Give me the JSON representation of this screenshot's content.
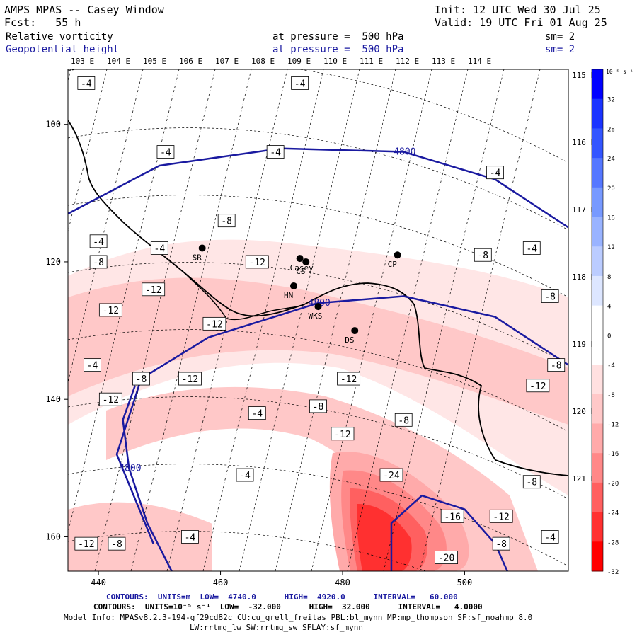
{
  "header": {
    "model_title": "AMPS MPAS -- Casey Window",
    "init": "Init: 12 UTC Wed 30 Jul 25",
    "fcst": "Fcst:   55 h",
    "valid": "Valid: 19 UTC Fri 01 Aug 25",
    "field1": "Relative vorticity",
    "field1_pressure": "at pressure =  500 hPa",
    "field1_sm": "sm= 2",
    "field2": "Geopotential height",
    "field2_pressure": "at pressure =  500 hPa",
    "field2_sm": "sm= 2"
  },
  "colors": {
    "height_contour": "#1a1aa0",
    "coast": "#000000"
  },
  "chart_data": {
    "type": "heatmap",
    "x_ticks": [
      440,
      460,
      480,
      500
    ],
    "y_ticks": [
      100,
      120,
      140,
      160
    ],
    "xlim": [
      435,
      517
    ],
    "ylim": [
      92,
      165
    ],
    "top_lon_labels": [
      "103 E",
      "104 E",
      "105 E",
      "106 E",
      "107 E",
      "108 E",
      "109 E",
      "110 E",
      "111 E",
      "112 E",
      "113 E",
      "114 E"
    ],
    "right_lat_labels": [
      "115 E",
      "116 E",
      "117 E",
      "118 E",
      "119 E",
      "120 E",
      "121 E"
    ],
    "colorbar": {
      "unit_label": "10⁻⁵ s⁻¹",
      "ticks": [
        32,
        28,
        24,
        20,
        16,
        12,
        8,
        4,
        0,
        -4,
        -8,
        -12,
        -16,
        -20,
        -24,
        -28,
        -32
      ],
      "colors": [
        "#0000ff",
        "#1a33ff",
        "#3355ff",
        "#5577ff",
        "#7799ff",
        "#99b3ff",
        "#bbccff",
        "#dde6ff",
        "#ffffff",
        "#ffffff",
        "#ffe0e0",
        "#ffc8c8",
        "#ffaaaa",
        "#ff8888",
        "#ff6060",
        "#ff3030",
        "#ff0000"
      ]
    },
    "height_contours": [
      {
        "label": "4800",
        "points": [
          [
            435,
            113
          ],
          [
            450,
            106
          ],
          [
            470,
            103.5
          ],
          [
            490,
            104
          ],
          [
            505,
            108
          ],
          [
            517,
            115
          ]
        ]
      },
      {
        "label": "4800",
        "points": [
          [
            449,
            161
          ],
          [
            443,
            148
          ],
          [
            447,
            137
          ],
          [
            458,
            131
          ],
          [
            476,
            126
          ],
          [
            490,
            125
          ],
          [
            505,
            128
          ],
          [
            517,
            135
          ]
        ]
      },
      {
        "label": "4800",
        "points": [
          [
            452,
            165
          ],
          [
            448,
            158
          ],
          [
            445,
            150
          ],
          [
            444,
            143
          ],
          [
            446,
            138
          ]
        ]
      },
      {
        "label": "",
        "points": [
          [
            488,
            165
          ],
          [
            488,
            158
          ],
          [
            493,
            154
          ],
          [
            500,
            156
          ],
          [
            505,
            161
          ],
          [
            507,
            165
          ]
        ]
      }
    ],
    "vorticity_labels": [
      {
        "value": "-4",
        "x": 438,
        "y": 94
      },
      {
        "value": "-4",
        "x": 473,
        "y": 94
      },
      {
        "value": "-4",
        "x": 505,
        "y": 107
      },
      {
        "value": "-4",
        "x": 469,
        "y": 104
      },
      {
        "value": "-4",
        "x": 451,
        "y": 104
      },
      {
        "value": "-8",
        "x": 461,
        "y": 114
      },
      {
        "value": "-4",
        "x": 440,
        "y": 117
      },
      {
        "value": "-4",
        "x": 450,
        "y": 118
      },
      {
        "value": "-8",
        "x": 440,
        "y": 120
      },
      {
        "value": "-12",
        "x": 466,
        "y": 120
      },
      {
        "value": "-4",
        "x": 511,
        "y": 118
      },
      {
        "value": "-8",
        "x": 503,
        "y": 119
      },
      {
        "value": "-12",
        "x": 449,
        "y": 124
      },
      {
        "value": "-12",
        "x": 442,
        "y": 127
      },
      {
        "value": "-8",
        "x": 514,
        "y": 125
      },
      {
        "value": "-12",
        "x": 459,
        "y": 129
      },
      {
        "value": "-4",
        "x": 439,
        "y": 135
      },
      {
        "value": "-8",
        "x": 447,
        "y": 137
      },
      {
        "value": "-12",
        "x": 455,
        "y": 137
      },
      {
        "value": "-12",
        "x": 481,
        "y": 137
      },
      {
        "value": "-8",
        "x": 515,
        "y": 135
      },
      {
        "value": "-12",
        "x": 512,
        "y": 138
      },
      {
        "value": "-12",
        "x": 442,
        "y": 140
      },
      {
        "value": "-4",
        "x": 466,
        "y": 142
      },
      {
        "value": "-8",
        "x": 476,
        "y": 141
      },
      {
        "value": "-8",
        "x": 490,
        "y": 143
      },
      {
        "value": "-12",
        "x": 480,
        "y": 145
      },
      {
        "value": "-4",
        "x": 464,
        "y": 151
      },
      {
        "value": "-24",
        "x": 488,
        "y": 151
      },
      {
        "value": "-8",
        "x": 511,
        "y": 152
      },
      {
        "value": "-16",
        "x": 498,
        "y": 157
      },
      {
        "value": "-12",
        "x": 506,
        "y": 157
      },
      {
        "value": "-12",
        "x": 438,
        "y": 161
      },
      {
        "value": "-8",
        "x": 443,
        "y": 161
      },
      {
        "value": "-4",
        "x": 455,
        "y": 160
      },
      {
        "value": "-8",
        "x": 506,
        "y": 161
      },
      {
        "value": "-4",
        "x": 514,
        "y": 160
      },
      {
        "value": "-20",
        "x": 497,
        "y": 163
      }
    ],
    "stations": [
      {
        "name": "SR",
        "x": 457,
        "y": 118
      },
      {
        "name": "Casey",
        "x": 473,
        "y": 119.5
      },
      {
        "name": "CS",
        "x": 474,
        "y": 120
      },
      {
        "name": "HN",
        "x": 472,
        "y": 123.5
      },
      {
        "name": "CP",
        "x": 489,
        "y": 119
      },
      {
        "name": "WKS",
        "x": 476,
        "y": 126.5
      },
      {
        "name": "DS",
        "x": 482,
        "y": 130
      }
    ],
    "contour_info_1": "CONTOURS:  UNITS=m  LOW=  4740.0      HIGH=  4920.0      INTERVAL=   60.000",
    "contour_info_2": "CONTOURS:  UNITS=10⁻⁵ s⁻¹  LOW=  -32.000      HIGH=  32.000      INTERVAL=   4.0000",
    "model_info_1": "Model Info: MPASv8.2.3-194-gf29cd82c CU:cu_grell_freitas PBL:bl_mynn MP:mp_thompson SF:sf_noahmp 8.0",
    "model_info_2": "LW:rrtmg_lw SW:rrtmg_sw SFLAY:sf_mynn"
  }
}
